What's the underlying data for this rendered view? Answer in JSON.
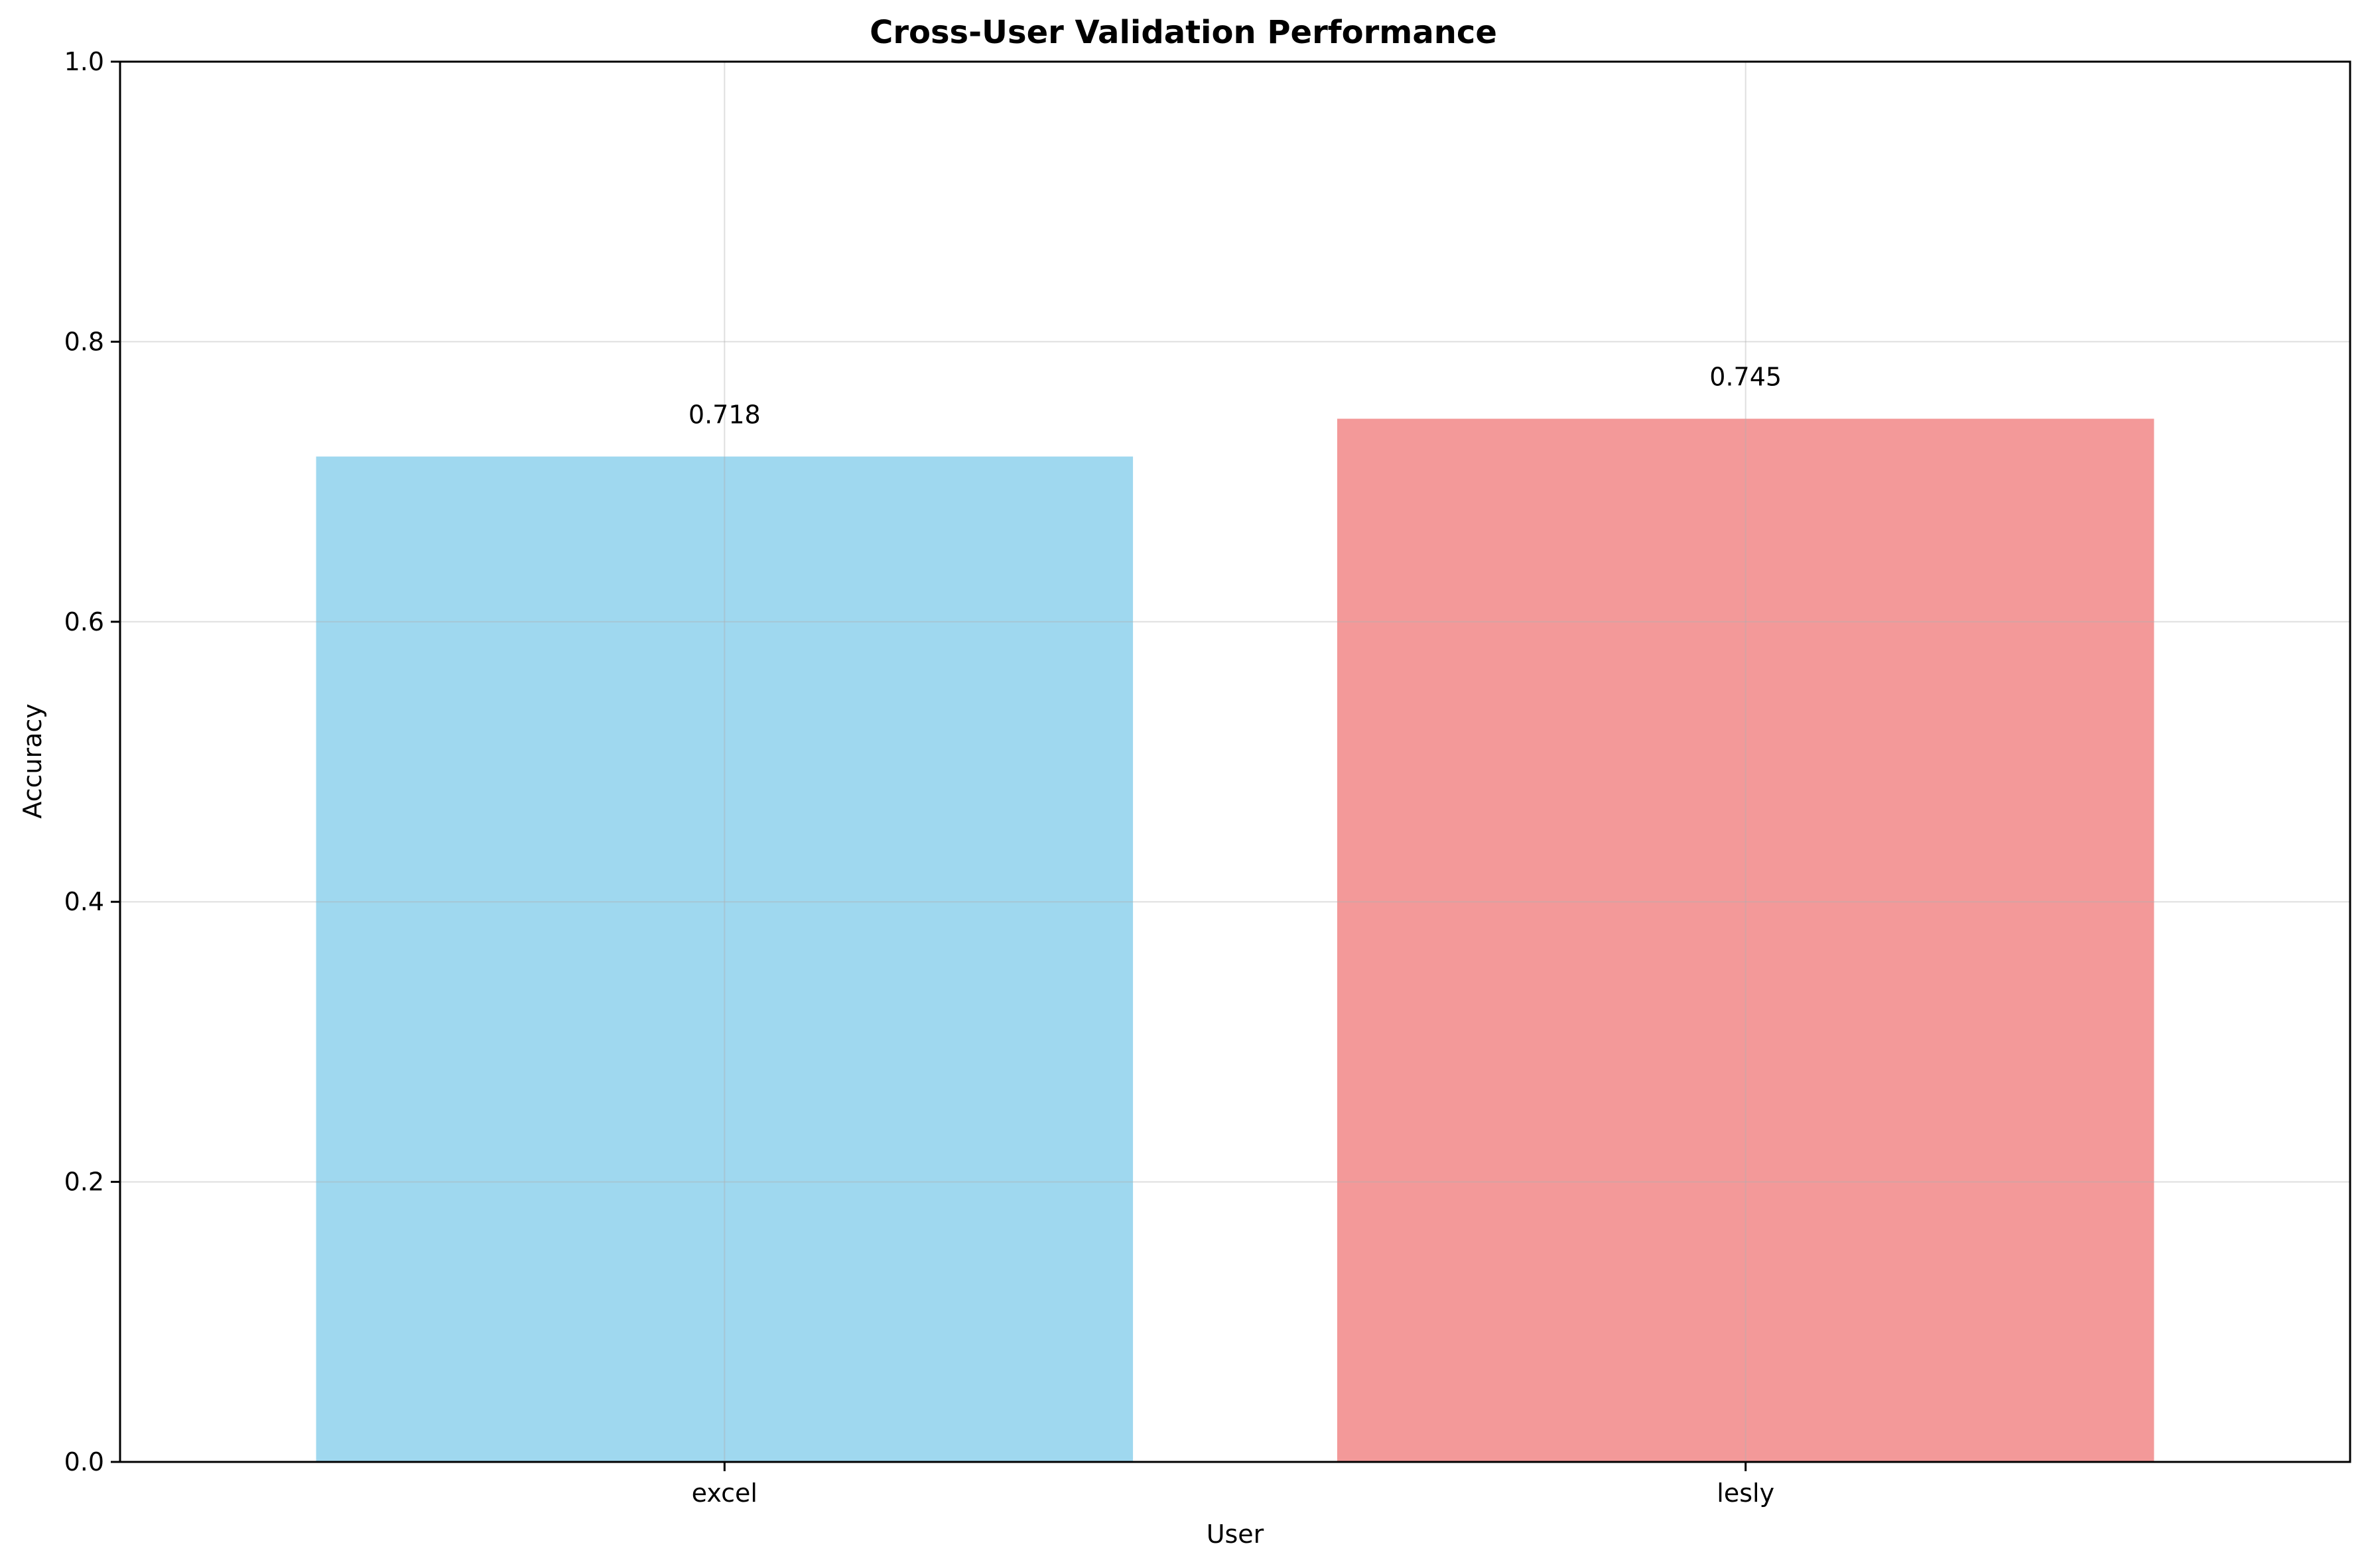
{
  "chart_data": {
    "type": "bar",
    "title": "Cross-User Validation Performance",
    "xlabel": "User",
    "ylabel": "Accuracy",
    "categories": [
      "excel",
      "lesly"
    ],
    "values": [
      0.718,
      0.745
    ],
    "value_labels": [
      "0.718",
      "0.745"
    ],
    "colors": [
      "#87ceeb",
      "#f08080"
    ],
    "bar_opacity": 0.8,
    "ylim": [
      0,
      1.0
    ],
    "yticks": [
      0.0,
      0.2,
      0.4,
      0.6,
      0.8,
      1.0
    ],
    "ytick_labels": [
      "0.0",
      "0.2",
      "0.4",
      "0.6",
      "0.8",
      "1.0"
    ],
    "grid": true
  }
}
